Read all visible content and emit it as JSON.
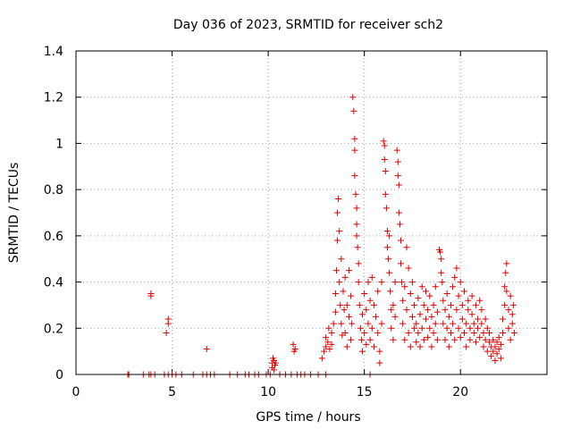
{
  "chart_data": {
    "type": "scatter",
    "title": "Day 036 of 2023, SRMTID for receiver sch2",
    "xlabel": "GPS time / hours",
    "ylabel": "SRMTID / TECUs",
    "xlim": [
      0,
      24.5
    ],
    "ylim": [
      0,
      1.4
    ],
    "xticks": [
      0,
      5,
      10,
      15,
      20
    ],
    "xtick_labels": [
      "0",
      "5",
      "10",
      "15",
      "20"
    ],
    "yticks": [
      0,
      0.2,
      0.4,
      0.6,
      0.8,
      1.0,
      1.2,
      1.4
    ],
    "ytick_labels": [
      "0",
      "0.2",
      "0.4",
      "0.6",
      "0.8",
      "1",
      "1.2",
      "1.4"
    ],
    "grid": true,
    "marker": "plus",
    "color": "#e00000",
    "series": [
      {
        "name": "sch2",
        "points": [
          [
            2.7,
            0
          ],
          [
            2.75,
            0
          ],
          [
            3.5,
            0
          ],
          [
            3.8,
            0
          ],
          [
            3.9,
            0
          ],
          [
            4.1,
            0
          ],
          [
            4.6,
            0
          ],
          [
            4.8,
            0
          ],
          [
            5.0,
            0
          ],
          [
            5.2,
            0
          ],
          [
            5.5,
            0
          ],
          [
            6.1,
            0
          ],
          [
            6.6,
            0
          ],
          [
            6.8,
            0
          ],
          [
            7.0,
            0
          ],
          [
            7.2,
            0
          ],
          [
            8.0,
            0
          ],
          [
            8.4,
            0
          ],
          [
            8.8,
            0
          ],
          [
            9.0,
            0
          ],
          [
            9.3,
            0
          ],
          [
            9.5,
            0
          ],
          [
            9.9,
            0
          ],
          [
            10.1,
            0
          ],
          [
            10.6,
            0
          ],
          [
            10.9,
            0
          ],
          [
            11.2,
            0
          ],
          [
            11.5,
            0
          ],
          [
            11.7,
            0
          ],
          [
            11.9,
            0
          ],
          [
            12.2,
            0
          ],
          [
            12.6,
            0
          ],
          [
            13.0,
            0
          ],
          [
            15.3,
            0
          ],
          [
            3.9,
            0.34
          ],
          [
            3.9,
            0.35
          ],
          [
            4.7,
            0.18
          ],
          [
            4.8,
            0.22
          ],
          [
            4.8,
            0.24
          ],
          [
            6.8,
            0.11
          ],
          [
            10.2,
            0.03
          ],
          [
            10.2,
            0.05
          ],
          [
            10.25,
            0.07
          ],
          [
            10.3,
            0.06
          ],
          [
            10.35,
            0.04
          ],
          [
            10.4,
            0.05
          ],
          [
            10.3,
            0.02
          ],
          [
            11.3,
            0.13
          ],
          [
            11.35,
            0.1
          ],
          [
            11.4,
            0.11
          ],
          [
            12.8,
            0.07
          ],
          [
            12.9,
            0.1
          ],
          [
            13.0,
            0.12
          ],
          [
            13.0,
            0.16
          ],
          [
            13.1,
            0.14
          ],
          [
            13.15,
            0.2
          ],
          [
            13.2,
            0.11
          ],
          [
            13.3,
            0.18
          ],
          [
            13.3,
            0.13
          ],
          [
            13.4,
            0.22
          ],
          [
            13.5,
            0.27
          ],
          [
            13.5,
            0.35
          ],
          [
            13.55,
            0.45
          ],
          [
            13.6,
            0.58
          ],
          [
            13.6,
            0.7
          ],
          [
            13.65,
            0.76
          ],
          [
            13.7,
            0.62
          ],
          [
            13.7,
            0.4
          ],
          [
            13.75,
            0.3
          ],
          [
            13.8,
            0.5
          ],
          [
            13.8,
            0.22
          ],
          [
            13.85,
            0.17
          ],
          [
            13.9,
            0.36
          ],
          [
            13.95,
            0.28
          ],
          [
            14.0,
            0.42
          ],
          [
            14.0,
            0.18
          ],
          [
            14.1,
            0.3
          ],
          [
            14.1,
            0.12
          ],
          [
            14.2,
            0.25
          ],
          [
            14.2,
            0.45
          ],
          [
            14.3,
            0.15
          ],
          [
            14.3,
            0.34
          ],
          [
            14.35,
            0.22
          ],
          [
            14.4,
            1.2
          ],
          [
            14.45,
            1.14
          ],
          [
            14.5,
            1.02
          ],
          [
            14.5,
            0.97
          ],
          [
            14.5,
            0.86
          ],
          [
            14.55,
            0.78
          ],
          [
            14.6,
            0.72
          ],
          [
            14.6,
            0.65
          ],
          [
            14.6,
            0.6
          ],
          [
            14.65,
            0.55
          ],
          [
            14.7,
            0.48
          ],
          [
            14.7,
            0.4
          ],
          [
            14.75,
            0.3
          ],
          [
            14.8,
            0.2
          ],
          [
            14.85,
            0.15
          ],
          [
            14.9,
            0.1
          ],
          [
            14.9,
            0.26
          ],
          [
            15.0,
            0.35
          ],
          [
            15.0,
            0.18
          ],
          [
            15.1,
            0.13
          ],
          [
            15.1,
            0.28
          ],
          [
            15.2,
            0.22
          ],
          [
            15.2,
            0.4
          ],
          [
            15.3,
            0.32
          ],
          [
            15.3,
            0.15
          ],
          [
            15.4,
            0.42
          ],
          [
            15.4,
            0.2
          ],
          [
            15.5,
            0.12
          ],
          [
            15.5,
            0.3
          ],
          [
            15.6,
            0.25
          ],
          [
            15.7,
            0.18
          ],
          [
            15.7,
            0.36
          ],
          [
            15.8,
            0.1
          ],
          [
            15.8,
            0.05
          ],
          [
            15.9,
            0.22
          ],
          [
            15.9,
            0.4
          ],
          [
            16.0,
            1.01
          ],
          [
            16.05,
            0.99
          ],
          [
            16.05,
            0.93
          ],
          [
            16.1,
            0.88
          ],
          [
            16.1,
            0.78
          ],
          [
            16.15,
            0.72
          ],
          [
            16.2,
            0.62
          ],
          [
            16.2,
            0.55
          ],
          [
            16.25,
            0.5
          ],
          [
            16.3,
            0.6
          ],
          [
            16.3,
            0.44
          ],
          [
            16.35,
            0.36
          ],
          [
            16.4,
            0.28
          ],
          [
            16.4,
            0.2
          ],
          [
            16.5,
            0.3
          ],
          [
            16.5,
            0.15
          ],
          [
            16.6,
            0.4
          ],
          [
            16.6,
            0.25
          ],
          [
            16.7,
            0.97
          ],
          [
            16.75,
            0.92
          ],
          [
            16.75,
            0.86
          ],
          [
            16.8,
            0.82
          ],
          [
            16.8,
            0.7
          ],
          [
            16.85,
            0.65
          ],
          [
            16.9,
            0.58
          ],
          [
            16.9,
            0.48
          ],
          [
            16.95,
            0.4
          ],
          [
            17.0,
            0.32
          ],
          [
            17.0,
            0.22
          ],
          [
            17.1,
            0.15
          ],
          [
            17.1,
            0.38
          ],
          [
            17.2,
            0.28
          ],
          [
            17.2,
            0.55
          ],
          [
            17.3,
            0.46
          ],
          [
            17.3,
            0.18
          ],
          [
            17.4,
            0.35
          ],
          [
            17.4,
            0.12
          ],
          [
            17.5,
            0.25
          ],
          [
            17.5,
            0.4
          ],
          [
            17.6,
            0.2
          ],
          [
            17.6,
            0.3
          ],
          [
            17.7,
            0.14
          ],
          [
            17.7,
            0.22
          ],
          [
            17.8,
            0.33
          ],
          [
            17.8,
            0.18
          ],
          [
            17.9,
            0.26
          ],
          [
            17.9,
            0.12
          ],
          [
            18.0,
            0.38
          ],
          [
            18.0,
            0.2
          ],
          [
            18.1,
            0.3
          ],
          [
            18.1,
            0.15
          ],
          [
            18.2,
            0.36
          ],
          [
            18.2,
            0.24
          ],
          [
            18.3,
            0.16
          ],
          [
            18.3,
            0.28
          ],
          [
            18.4,
            0.2
          ],
          [
            18.4,
            0.34
          ],
          [
            18.5,
            0.12
          ],
          [
            18.5,
            0.25
          ],
          [
            18.6,
            0.3
          ],
          [
            18.6,
            0.18
          ],
          [
            18.7,
            0.22
          ],
          [
            18.7,
            0.38
          ],
          [
            18.8,
            0.15
          ],
          [
            18.8,
            0.27
          ],
          [
            18.9,
            0.54
          ],
          [
            18.95,
            0.53
          ],
          [
            19.0,
            0.5
          ],
          [
            19.0,
            0.44
          ],
          [
            19.05,
            0.4
          ],
          [
            19.1,
            0.32
          ],
          [
            19.1,
            0.22
          ],
          [
            19.2,
            0.15
          ],
          [
            19.2,
            0.28
          ],
          [
            19.3,
            0.2
          ],
          [
            19.3,
            0.35
          ],
          [
            19.4,
            0.12
          ],
          [
            19.4,
            0.25
          ],
          [
            19.5,
            0.3
          ],
          [
            19.5,
            0.18
          ],
          [
            19.6,
            0.38
          ],
          [
            19.6,
            0.22
          ],
          [
            19.7,
            0.42
          ],
          [
            19.7,
            0.15
          ],
          [
            19.8,
            0.46
          ],
          [
            19.8,
            0.28
          ],
          [
            19.9,
            0.2
          ],
          [
            19.9,
            0.34
          ],
          [
            20.0,
            0.4
          ],
          [
            20.0,
            0.16
          ],
          [
            20.1,
            0.3
          ],
          [
            20.1,
            0.24
          ],
          [
            20.2,
            0.18
          ],
          [
            20.2,
            0.36
          ],
          [
            20.3,
            0.22
          ],
          [
            20.3,
            0.12
          ],
          [
            20.4,
            0.28
          ],
          [
            20.4,
            0.32
          ],
          [
            20.5,
            0.2
          ],
          [
            20.5,
            0.15
          ],
          [
            20.6,
            0.26
          ],
          [
            20.6,
            0.34
          ],
          [
            20.7,
            0.18
          ],
          [
            20.7,
            0.22
          ],
          [
            20.8,
            0.3
          ],
          [
            20.8,
            0.14
          ],
          [
            20.9,
            0.24
          ],
          [
            20.9,
            0.2
          ],
          [
            21.0,
            0.32
          ],
          [
            21.0,
            0.16
          ],
          [
            21.1,
            0.22
          ],
          [
            21.1,
            0.28
          ],
          [
            21.2,
            0.18
          ],
          [
            21.2,
            0.12
          ],
          [
            21.3,
            0.24
          ],
          [
            21.3,
            0.15
          ],
          [
            21.4,
            0.2
          ],
          [
            21.4,
            0.1
          ],
          [
            21.5,
            0.14
          ],
          [
            21.5,
            0.18
          ],
          [
            21.6,
            0.12
          ],
          [
            21.6,
            0.08
          ],
          [
            21.7,
            0.15
          ],
          [
            21.7,
            0.1
          ],
          [
            21.8,
            0.12
          ],
          [
            21.8,
            0.06
          ],
          [
            21.9,
            0.14
          ],
          [
            21.9,
            0.09
          ],
          [
            22.0,
            0.11
          ],
          [
            22.0,
            0.16
          ],
          [
            22.1,
            0.13
          ],
          [
            22.1,
            0.07
          ],
          [
            22.2,
            0.18
          ],
          [
            22.2,
            0.24
          ],
          [
            22.3,
            0.3
          ],
          [
            22.3,
            0.38
          ],
          [
            22.35,
            0.44
          ],
          [
            22.4,
            0.48
          ],
          [
            22.4,
            0.36
          ],
          [
            22.5,
            0.28
          ],
          [
            22.5,
            0.2
          ],
          [
            22.6,
            0.34
          ],
          [
            22.6,
            0.15
          ],
          [
            22.7,
            0.26
          ],
          [
            22.7,
            0.22
          ],
          [
            22.75,
            0.3
          ],
          [
            22.8,
            0.18
          ]
        ]
      }
    ]
  }
}
